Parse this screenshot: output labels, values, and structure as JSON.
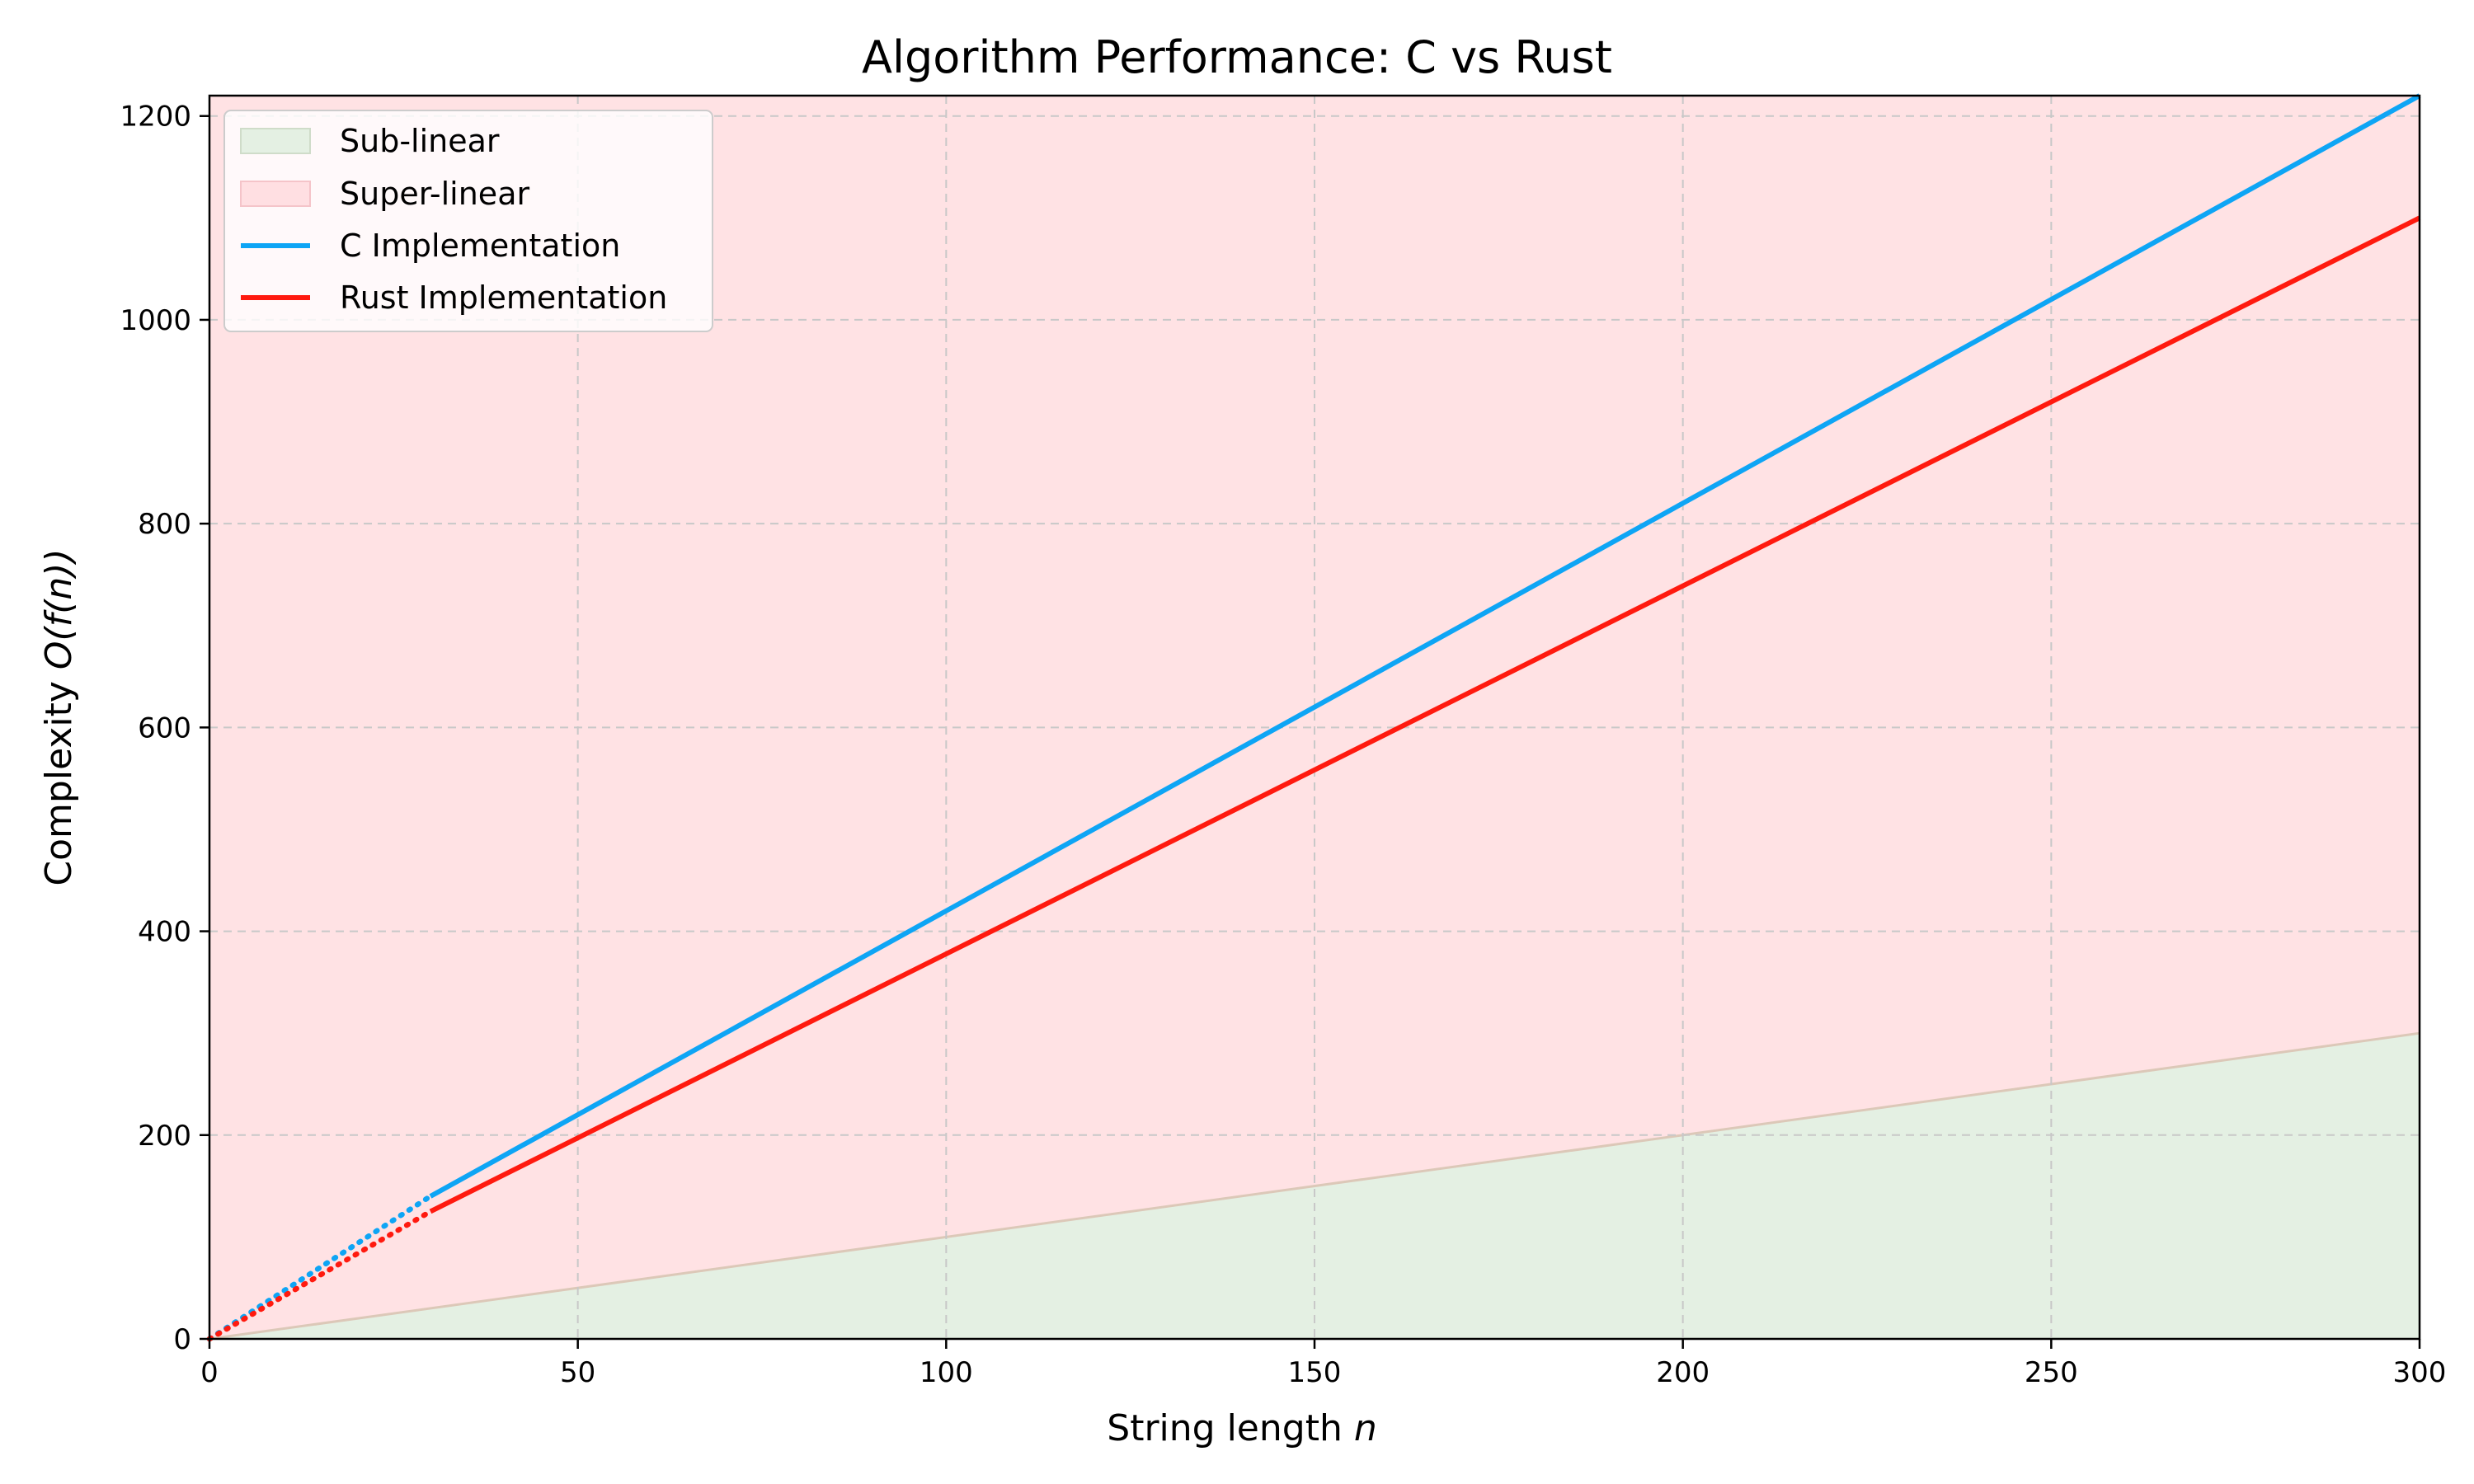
{
  "chart_data": {
    "type": "line",
    "title": "Algorithm Performance: C vs Rust",
    "xlabel_text": "String length ",
    "xlabel_var": "n",
    "ylabel_text": "Complexity ",
    "ylabel_math": "O(f(n))",
    "xlim": [
      0,
      300
    ],
    "ylim": [
      0,
      1220
    ],
    "xticks": [
      0,
      50,
      100,
      150,
      200,
      250,
      300
    ],
    "yticks": [
      0,
      200,
      400,
      600,
      800,
      1000,
      1200
    ],
    "grid": true,
    "legend_position": "top-left",
    "colors": {
      "c": "#0ea5f5",
      "rust": "#ff1a0f",
      "sub_fill": "#e4f0e3",
      "sub_edge": "#dcc8b8",
      "super_fill": "#ffe2e4",
      "grid": "#c8c8c8"
    },
    "regions": [
      {
        "name": "Sub-linear",
        "x": [
          0,
          300
        ],
        "y": [
          0,
          300
        ]
      },
      {
        "name": "Super-linear",
        "x": [
          0,
          300
        ],
        "y_lower": [
          0,
          300
        ],
        "y_upper": 1220
      }
    ],
    "series": [
      {
        "name": "C Implementation",
        "x": [
          0,
          30,
          300
        ],
        "y": [
          0,
          140,
          1220
        ],
        "dotted_until_x": 30
      },
      {
        "name": "Rust Implementation",
        "x": [
          0,
          30,
          300
        ],
        "y": [
          0,
          125,
          1100
        ],
        "dotted_until_x": 30
      }
    ]
  }
}
